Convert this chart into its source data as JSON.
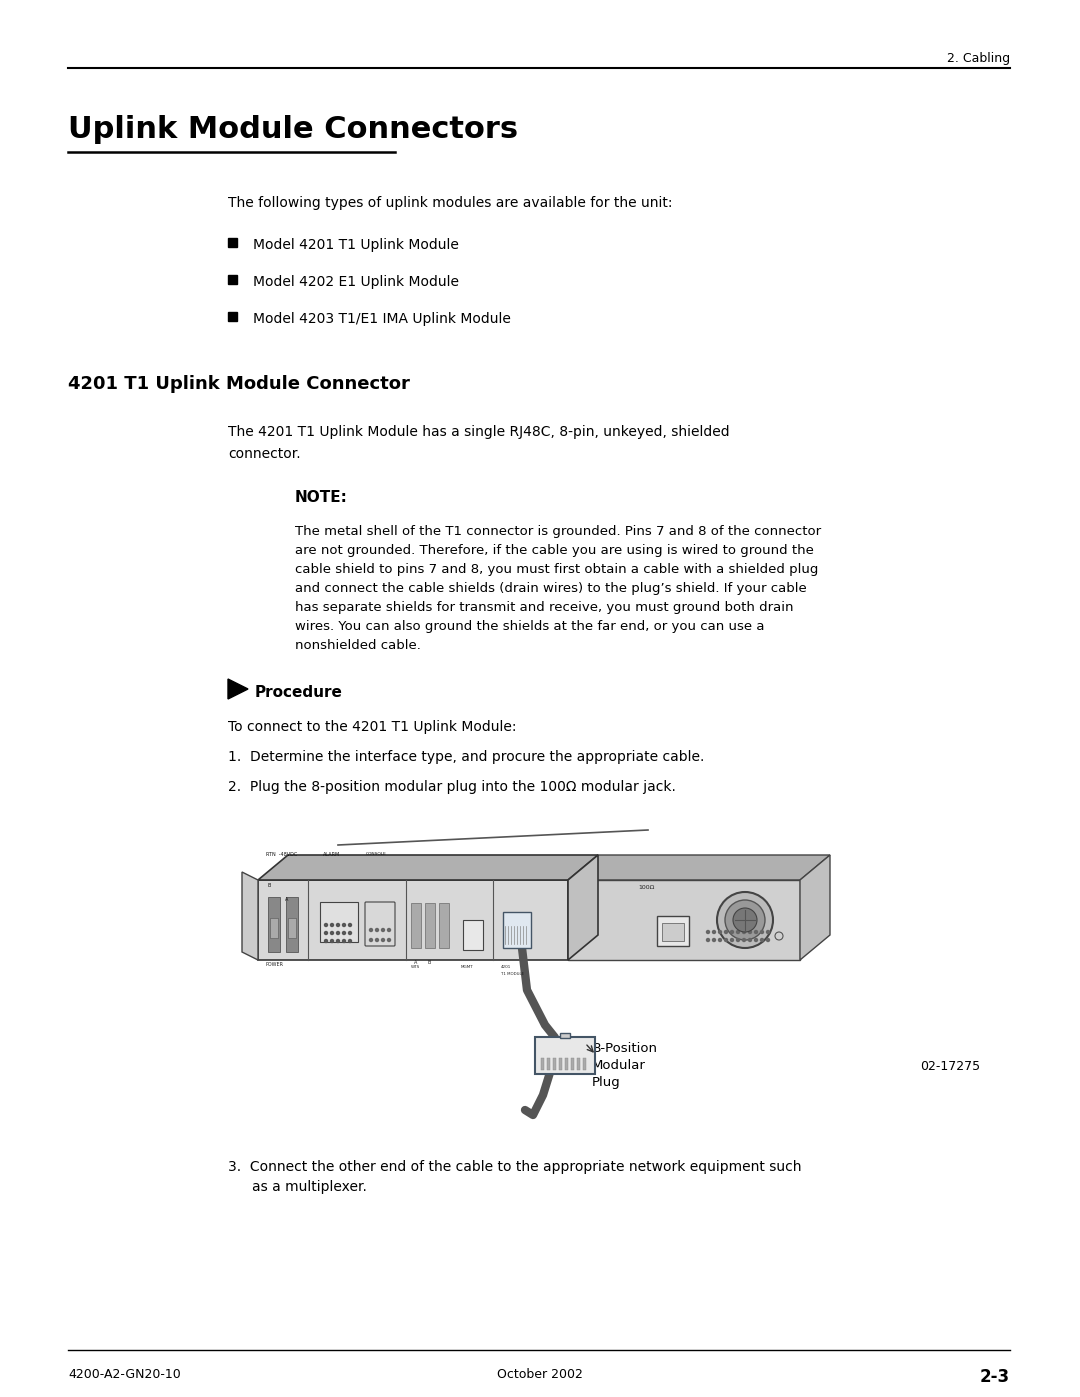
{
  "page_title": "Uplink Module Connectors",
  "section_header": "2. Cabling",
  "section_subheader": "4201 T1 Uplink Module Connector",
  "intro_text": "The following types of uplink modules are available for the unit:",
  "bullet_items": [
    "Model 4201 T1 Uplink Module",
    "Model 4202 E1 Uplink Module",
    "Model 4203 T1/E1 IMA Uplink Module"
  ],
  "sub_intro": "The 4201 T1 Uplink Module has a single RJ48C, 8-pin, unkeyed, shielded\nconnector.",
  "note_label": "NOTE:",
  "note_text": "The metal shell of the T1 connector is grounded. Pins 7 and 8 of the connector\nare not grounded. Therefore, if the cable you are using is wired to ground the\ncable shield to pins 7 and 8, you must first obtain a cable with a shielded plug\nand connect the cable shields (drain wires) to the plug’s shield. If your cable\nhas separate shields for transmit and receive, you must ground both drain\nwires. You can also ground the shields at the far end, or you can use a\nnonshielded cable.",
  "procedure_label": "Procedure",
  "procedure_intro": "To connect to the 4201 T1 Uplink Module:",
  "step1": "Determine the interface type, and procure the appropriate cable.",
  "step2": "Plug the 8-position modular plug into the 100Ω modular jack.",
  "step3_line1": "Connect the other end of the cable to the appropriate network equipment such",
  "step3_line2": "as a multiplexer.",
  "diagram_label_line1": "8-Position",
  "diagram_label_line2": "Modular",
  "diagram_label_line3": "Plug",
  "diagram_code": "02-17275",
  "footer_left": "4200-A2-GN20-10",
  "footer_center": "October 2002",
  "footer_right": "2-3",
  "bg_color": "#ffffff",
  "text_color": "#000000",
  "line_color": "#000000"
}
